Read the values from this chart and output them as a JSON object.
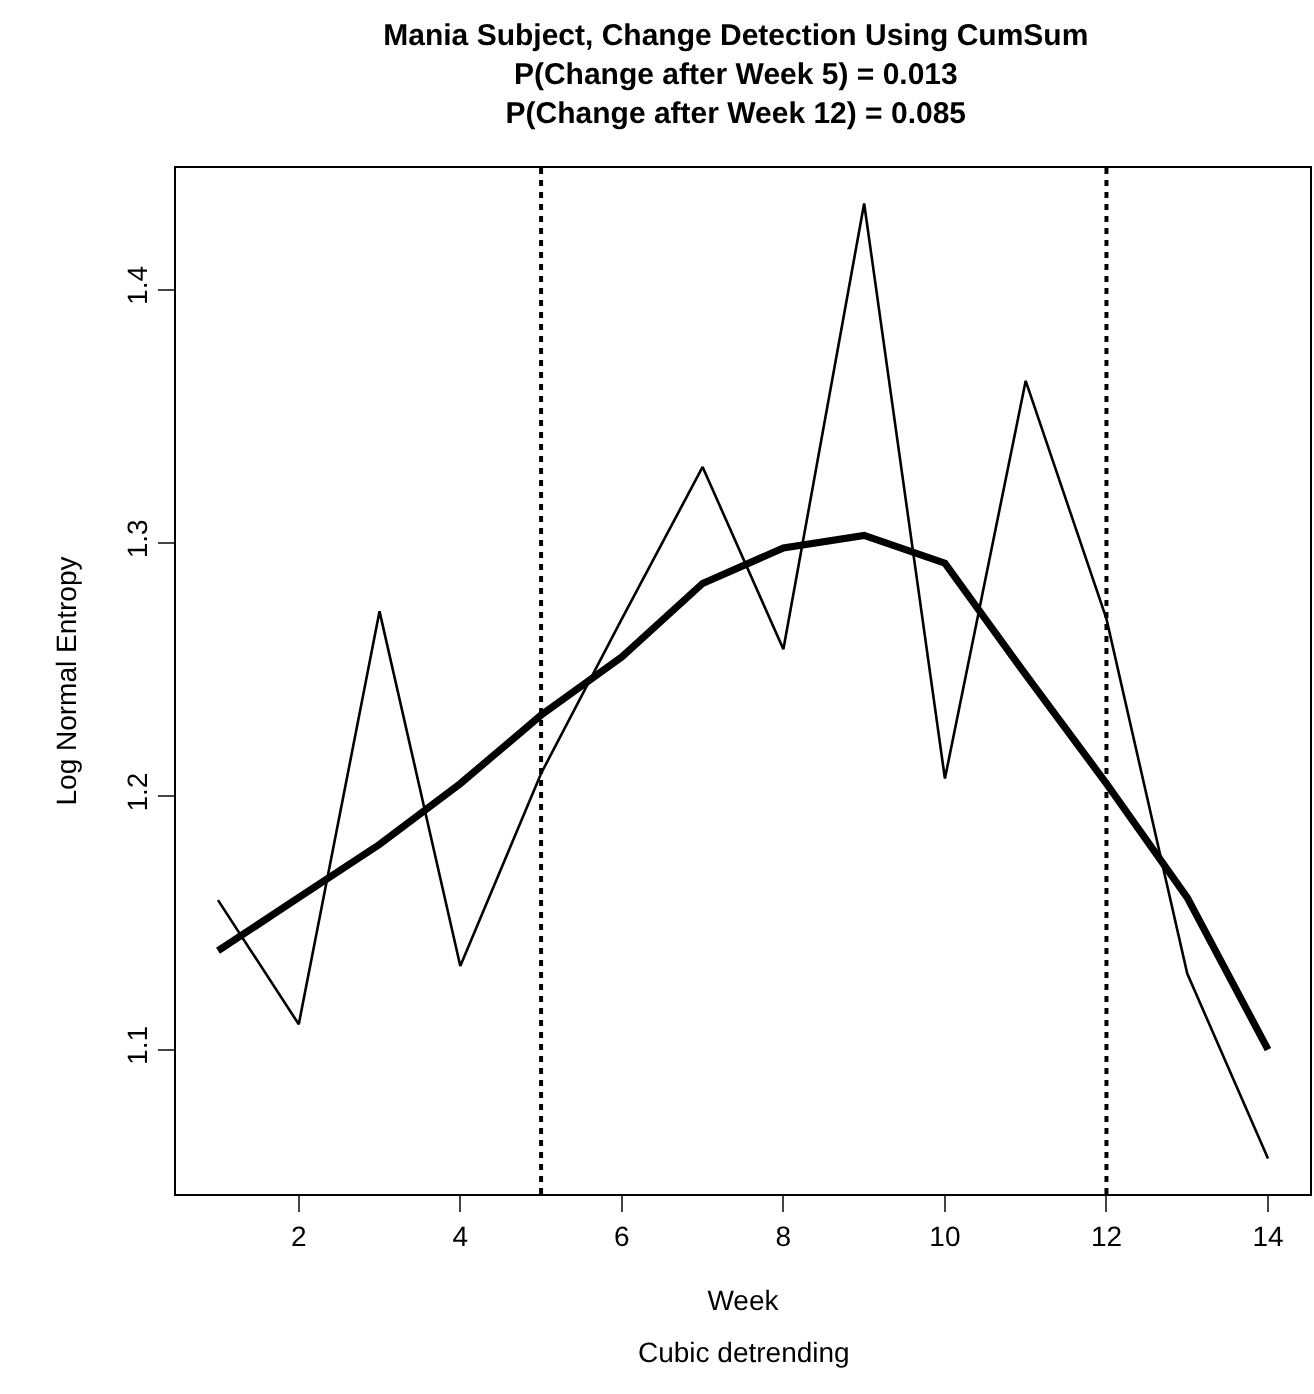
{
  "chart_data": {
    "type": "line",
    "title": "Mania Subject, Change Detection Using CumSum",
    "subtitle": "P(Change after Week 5) = 0.013\nP(Change after Week 12) = 0.085",
    "xlabel": "Week",
    "ylabel": "Log Normal Entropy",
    "annotations": [
      "Cubic detrending"
    ],
    "x": [
      1,
      2,
      3,
      4,
      5,
      6,
      7,
      8,
      9,
      10,
      11,
      12,
      13,
      14
    ],
    "series": [
      {
        "color": "#000000",
        "values": [
          1.159,
          1.11,
          1.273,
          1.133,
          1.209,
          1.27,
          1.33,
          1.258,
          1.434,
          1.207,
          1.364,
          1.27,
          1.13,
          1.057
        ]
      },
      {
        "color": "#000000",
        "values": [
          1.139,
          1.16,
          1.181,
          1.205,
          1.232,
          1.255,
          1.284,
          1.298,
          1.303,
          1.292,
          1.248,
          1.205,
          1.16,
          1.1
        ]
      }
    ],
    "xlim": [
      0.48,
      14.52
    ],
    "xticks": [
      2,
      4,
      6,
      8,
      10,
      12,
      14
    ],
    "ylim": [
      1.043,
      1.448
    ],
    "yticks": [
      1.1,
      1.2,
      1.3,
      1.4
    ],
    "ref_lines": [
      {
        "axis": "x",
        "value": 5,
        "line_style": "dotted",
        "color": "#000000"
      },
      {
        "axis": "x",
        "value": 12,
        "line_style": "dotted",
        "color": "#000000"
      }
    ],
    "grid": false,
    "marker": "none",
    "line_style": "solid"
  }
}
